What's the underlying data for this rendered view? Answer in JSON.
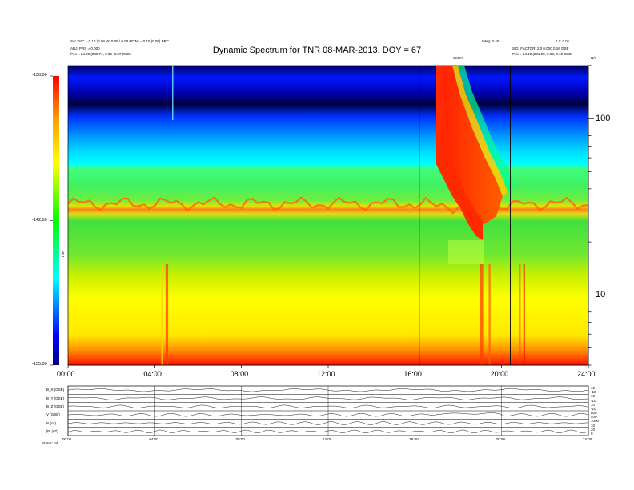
{
  "chart_data": [
    {
      "type": "heatmap",
      "title": "Dynamic Spectrum for TNR 08-MAR-2013, DOY = 67",
      "x_unit": "UT hours",
      "x_ticks": [
        "00:00",
        "04:00",
        "08:00",
        "12:00",
        "16:00",
        "20:00",
        "24:00"
      ],
      "xlim": [
        0,
        24
      ],
      "y_scale": "log",
      "ylim_khz": [
        4,
        200
      ],
      "y_ticks": [
        "100",
        "10"
      ],
      "colorbar": {
        "label": "TNR",
        "ticks": [
          "-130.00",
          "-142.50",
          "-155.00"
        ],
        "range": [
          -155,
          -130
        ],
        "colors": [
          "#00007f",
          "#0000ff",
          "#00c8ff",
          "#00ffff",
          "#00ff00",
          "#ffff00",
          "#ffa000",
          "#ff0000",
          "#ff3030"
        ]
      },
      "vertical_markers_hours": [
        16.2,
        20.4
      ],
      "event_label": "CME?",
      "top_left_info": [
        "Ssc: S/C = 0.10 (0.08 W: 0.08 / 0.08 (RTN) = 0.10 (0.08) BRC",
        "ADJ: PRS = 0.000",
        "Pos = 24.00 (230.74, 0.00 -0.57 GSE)"
      ],
      "top_right_info": [
        "Integ: 3.40",
        "L7: 0.01",
        "SIG_FACTOR: 2.0 0.000 0.16 GSE",
        "Pos = 24.10 (231.00, 0.00, 0.10 GSE)",
        "N/I"
      ],
      "bands": [
        {
          "name": "bottom red noise",
          "kHz": [
            4,
            5
          ]
        },
        {
          "name": "yellow background",
          "kHz": [
            5,
            25
          ]
        },
        {
          "name": "green background",
          "kHz": [
            25,
            33
          ]
        },
        {
          "name": "plasma line",
          "kHz": [
            30,
            35
          ]
        },
        {
          "name": "upper green",
          "kHz": [
            35,
            55
          ]
        },
        {
          "name": "cyan",
          "kHz": [
            55,
            130
          ]
        },
        {
          "name": "blue",
          "kHz": [
            130,
            160
          ]
        },
        {
          "name": "dark blue/black",
          "kHz": [
            160,
            200
          ]
        }
      ],
      "burst": {
        "type": "type II / III drifting emission",
        "start_hour": 17.0,
        "end_hour": 19.8,
        "kHz_high": 200,
        "kHz_low": 25
      }
    },
    {
      "type": "line",
      "title": "",
      "x_ticks": [
        "00:00",
        "04:00",
        "08:00",
        "12:00",
        "16:00",
        "20:00",
        "24:00"
      ],
      "panels": [
        {
          "label": "B_X (GSE)",
          "ticks_right": [
            "10",
            "-10"
          ]
        },
        {
          "label": "B_Y (GSE)",
          "ticks_right": [
            "10",
            "-10"
          ]
        },
        {
          "label": "B_Z (GSE)",
          "ticks_right": [
            "10",
            "-10"
          ]
        },
        {
          "label": "V (GSE)",
          "ticks_right": [
            "800",
            "400"
          ]
        },
        {
          "label": "N (cc)",
          "ticks_right": [
            "1000",
            "10"
          ]
        },
        {
          "label": "|B| (nT)",
          "ticks_right": [
            "20",
            "0"
          ]
        }
      ],
      "footer": "Status: mfi"
    }
  ]
}
